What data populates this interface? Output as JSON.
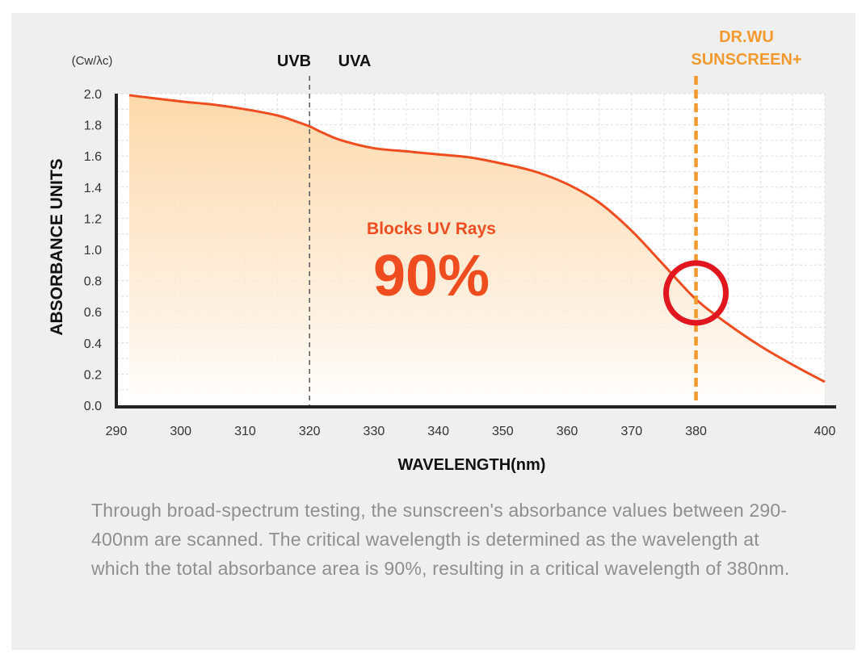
{
  "colors": {
    "panel_bg": "#efefef",
    "curve": "#ef4d1f",
    "fill_top": "#fdd7a6",
    "highlight": "#ef4d1f",
    "marker": "#f29a2e",
    "circle": "#e2161f",
    "axis": "#222222",
    "grid": "#d7d7d7",
    "description": "#8f8f8f"
  },
  "chart_data": {
    "type": "area",
    "title": "",
    "xlabel": "WAVELENGTH(nm)",
    "ylabel": "ABSORBANCE UNITS",
    "y_unit": "(Cw/λc)",
    "xlim": [
      290,
      400
    ],
    "ylim": [
      0,
      2.0
    ],
    "x_ticks": [
      "290",
      "300",
      "310",
      "320",
      "330",
      "340",
      "350",
      "360",
      "370",
      "380",
      "400"
    ],
    "x_tick_values": [
      290,
      300,
      310,
      320,
      330,
      340,
      350,
      360,
      370,
      380,
      400
    ],
    "y_ticks": [
      "0.0",
      "0.2",
      "0.4",
      "0.6",
      "0.8",
      "1.0",
      "1.2",
      "1.4",
      "1.6",
      "1.8",
      "2.0"
    ],
    "grid": true,
    "series": [
      {
        "name": "Absorbance",
        "x": [
          292,
          300,
          305,
          310,
          315,
          318,
          320,
          322,
          325,
          330,
          335,
          340,
          345,
          350,
          355,
          360,
          365,
          370,
          375,
          380,
          385,
          390,
          395,
          400
        ],
        "y": [
          1.99,
          1.95,
          1.93,
          1.9,
          1.86,
          1.82,
          1.79,
          1.75,
          1.7,
          1.65,
          1.63,
          1.61,
          1.59,
          1.55,
          1.5,
          1.42,
          1.3,
          1.12,
          0.9,
          0.68,
          0.52,
          0.38,
          0.26,
          0.15
        ]
      }
    ],
    "annotations": {
      "uvb_label": "UVB",
      "uva_label": "UVA",
      "uv_boundary_nm": 320,
      "product_label_line1": "DR.WU",
      "product_label_line2": "SUNSCREEN+",
      "critical_wavelength_nm": 380,
      "critical_absorbance": 0.7,
      "blocks_label": "Blocks UV Rays",
      "blocks_value": "90%"
    }
  },
  "description": "Through broad-spectrum testing, the sunscreen's absorbance values between 290-400nm are scanned. The critical wavelength is determined as the wavelength at which the total absorbance area is 90%, resulting in a critical wavelength of 380nm."
}
